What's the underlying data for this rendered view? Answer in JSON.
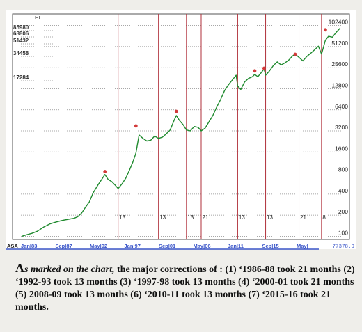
{
  "chart_data": {
    "type": "line",
    "title": "",
    "corner_label": "HL",
    "xlabel": "",
    "ylabel": "",
    "y_scale": "log",
    "ylim": [
      90,
      150000
    ],
    "right_ticks": [
      100,
      200,
      400,
      800,
      1600,
      3200,
      6400,
      12800,
      25600,
      51200,
      102400
    ],
    "left_ticks": [
      "85980",
      "68806",
      "51432",
      "34458",
      "17284"
    ],
    "bottom_left_label": "ASA",
    "x_tick_labels": [
      "Jan|83",
      "Sep|87",
      "May|92",
      "Jan|97",
      "Sep|01",
      "May|06",
      "Jan|11",
      "Sep|15",
      "May|"
    ],
    "bottom_right_value": "77378.9",
    "corrections": [
      {
        "label": "13",
        "x": 1992.6
      },
      {
        "label": "13",
        "x": 1997.8
      },
      {
        "label": "13",
        "x": 2001.4
      },
      {
        "label": "21",
        "x": 2003.3
      },
      {
        "label": "13",
        "x": 2008.0
      },
      {
        "label": "13",
        "x": 2011.6
      },
      {
        "label": "21",
        "x": 2015.9
      },
      {
        "label": "8",
        "x": 2018.8
      }
    ],
    "peak_markers": [
      {
        "x": 1990.9,
        "y": 800
      },
      {
        "x": 1994.9,
        "y": 3600
      },
      {
        "x": 2000.1,
        "y": 5800
      },
      {
        "x": 2010.2,
        "y": 22000
      },
      {
        "x": 2011.4,
        "y": 24000
      },
      {
        "x": 2015.4,
        "y": 38000
      },
      {
        "x": 2019.3,
        "y": 85000
      }
    ],
    "series": [
      {
        "color": "#1f8a2e",
        "x": [
          1980.2,
          1980.8,
          1981.5,
          1982.2,
          1983.0,
          1983.8,
          1984.6,
          1985.4,
          1986.2,
          1986.9,
          1987.4,
          1987.9,
          1988.4,
          1988.9,
          1989.4,
          1990.0,
          1990.5,
          1990.9,
          1991.3,
          1991.8,
          1992.2,
          1992.6,
          1993.1,
          1993.6,
          1994.1,
          1994.5,
          1994.9,
          1995.3,
          1995.8,
          1996.3,
          1996.8,
          1997.3,
          1997.8,
          1998.3,
          1998.8,
          1999.3,
          1999.8,
          2000.1,
          2000.5,
          2001.0,
          2001.4,
          2001.9,
          2002.4,
          2002.9,
          2003.3,
          2003.8,
          2004.3,
          2004.8,
          2005.3,
          2005.8,
          2006.3,
          2006.8,
          2007.3,
          2007.8,
          2008.0,
          2008.4,
          2008.9,
          2009.4,
          2009.9,
          2010.2,
          2010.6,
          2011.0,
          2011.4,
          2011.6,
          2012.1,
          2012.6,
          2013.1,
          2013.6,
          2014.1,
          2014.6,
          2015.0,
          2015.4,
          2015.9,
          2016.4,
          2016.9,
          2017.4,
          2017.9,
          2018.4,
          2018.8,
          2019.3,
          2019.7,
          2020.2,
          2020.7,
          2021.2
        ],
        "y": [
          100,
          105,
          110,
          118,
          135,
          150,
          160,
          168,
          175,
          180,
          190,
          215,
          260,
          310,
          420,
          540,
          650,
          760,
          650,
          600,
          540,
          480,
          560,
          680,
          900,
          1150,
          1550,
          2800,
          2500,
          2300,
          2350,
          2700,
          2500,
          2600,
          2900,
          3300,
          4500,
          5300,
          4500,
          3900,
          3300,
          3200,
          3700,
          3600,
          3200,
          3500,
          4300,
          5300,
          7000,
          9000,
          12000,
          14500,
          17000,
          20000,
          14000,
          12500,
          16000,
          18000,
          19000,
          20500,
          19000,
          21500,
          24500,
          20000,
          23000,
          27500,
          31000,
          28000,
          30000,
          33000,
          37000,
          40000,
          36000,
          32000,
          37000,
          41000,
          46000,
          52000,
          40000,
          63000,
          72000,
          70000,
          82000,
          94000
        ]
      }
    ]
  },
  "caption": {
    "lead": "A",
    "p1": "s marked on the chart,",
    "p2": " the major corrections of : (1) ‘1986-88 took 21 months (2) ‘1992-93 took 13 months (3) ‘1997-98 took 13 months (4) ‘2000-01 took 21 months (5) 2008-09 took 13 months (6) ‘2010-11 took 13 months (7) ‘2015-16 took 21 months."
  }
}
